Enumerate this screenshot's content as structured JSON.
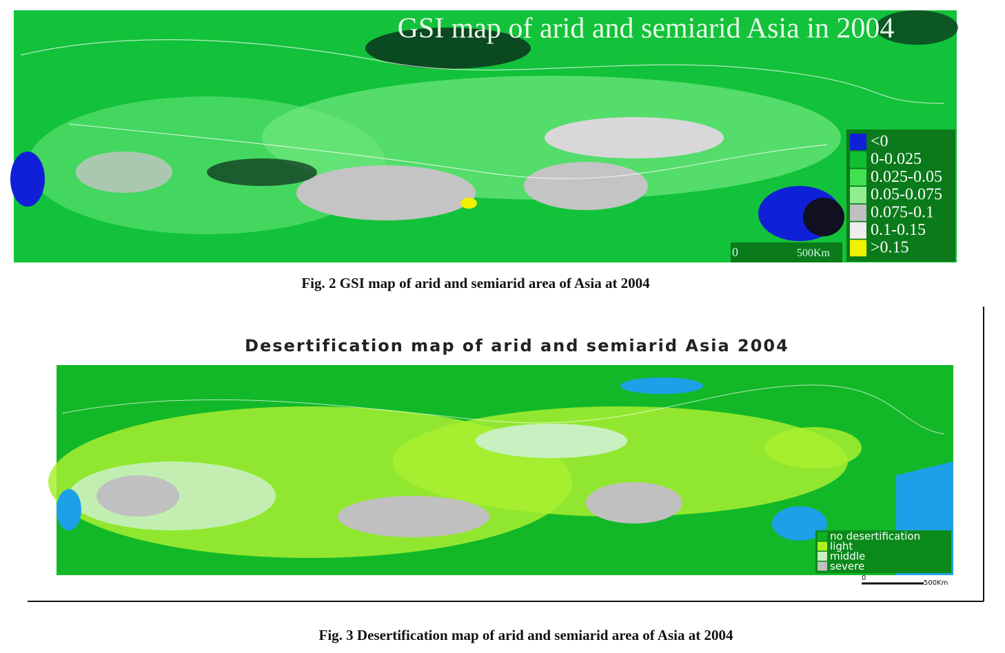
{
  "figures": [
    {
      "title": "GSI map of arid and semiarid  Asia in 2004",
      "legend": [
        {
          "label": "<0",
          "color": "#1020d8"
        },
        {
          "label": "0-0.025",
          "color": "#10c030"
        },
        {
          "label": "0.025-0.05",
          "color": "#40e050"
        },
        {
          "label": "0.05-0.075",
          "color": "#90ee90"
        },
        {
          "label": "0.075-0.1",
          "color": "#c0c0c0"
        },
        {
          "label": "0.1-0.15",
          "color": "#eeeeee"
        },
        {
          "label": ">0.15",
          "color": "#f0f000"
        }
      ],
      "scale": [
        "0",
        "500Km"
      ],
      "caption": "Fig. 2 GSI map of arid and semiarid area of Asia at 2004"
    },
    {
      "title": "Desertification map of arid and semiarid Asia 2004",
      "legend": [
        {
          "label": "no desertification",
          "color": "#10b020"
        },
        {
          "label": "light",
          "color": "#b0f020"
        },
        {
          "label": "middle",
          "color": "#c8f0c0"
        },
        {
          "label": "severe",
          "color": "#c0c0c0"
        }
      ],
      "scale": [
        "0",
        "500Km"
      ],
      "caption": "Fig. 3 Desertification map of arid and semiarid area of Asia at 2004"
    }
  ]
}
